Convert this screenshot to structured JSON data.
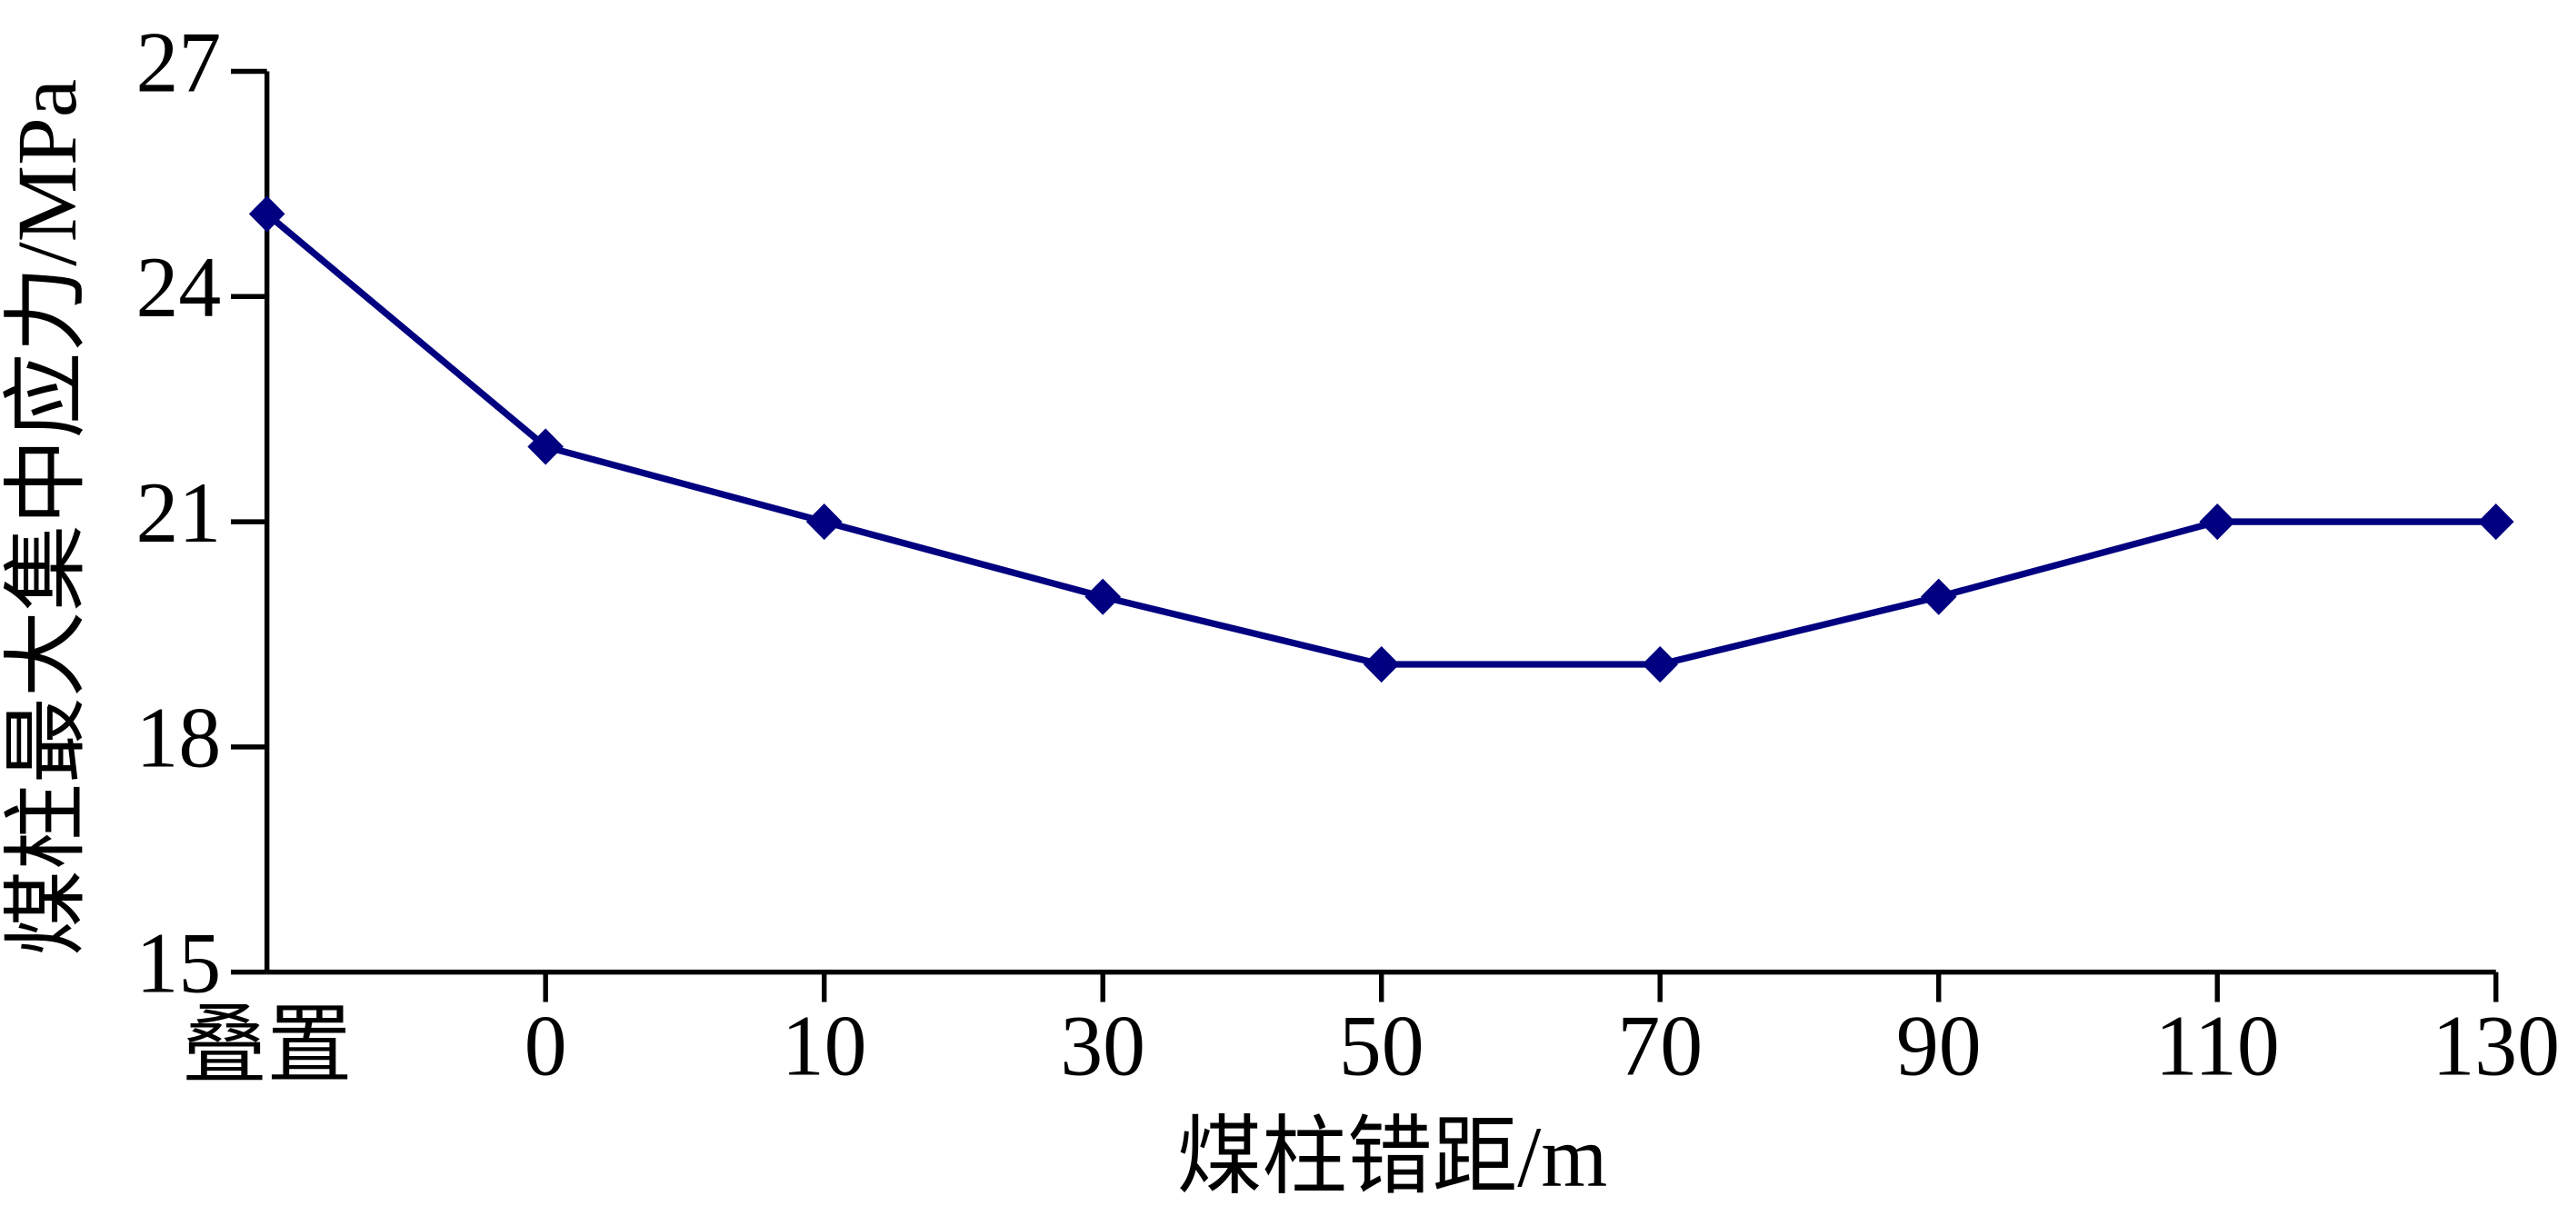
{
  "chart_data": {
    "type": "line",
    "xlabel": "煤柱错距/m",
    "ylabel": "煤柱最大集中应力/MPa",
    "categories": [
      "叠置",
      "0",
      "10",
      "30",
      "50",
      "70",
      "90",
      "110",
      "130"
    ],
    "values": [
      25.1,
      22.0,
      21.0,
      20.0,
      19.1,
      19.1,
      20.0,
      21.0,
      21.0
    ],
    "color": "#000080",
    "marker": "diamond",
    "ylim": [
      15,
      27
    ],
    "yticks": [
      15,
      18,
      21,
      24,
      27
    ],
    "grid": false
  }
}
